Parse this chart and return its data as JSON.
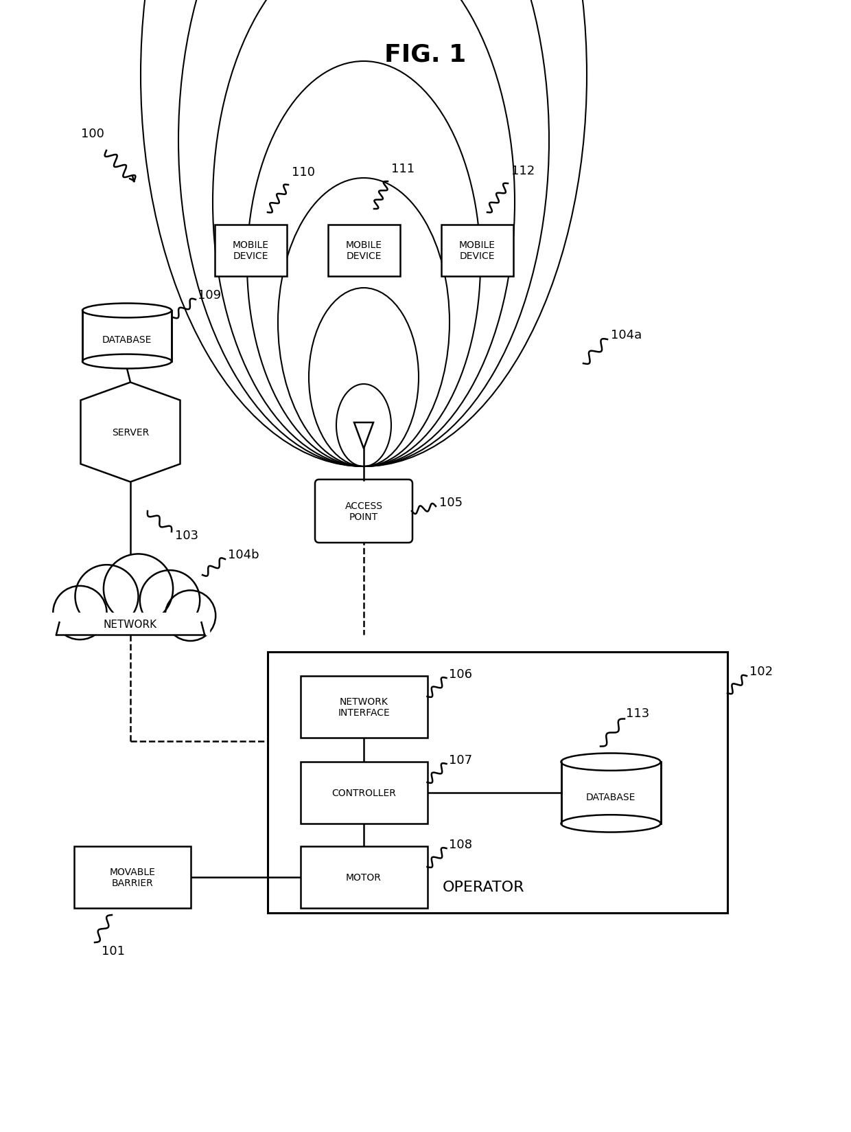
{
  "title": "FIG. 1",
  "bg_color": "#ffffff",
  "line_color": "#000000",
  "fig_width": 12.4,
  "fig_height": 16.49,
  "labels": {
    "fig_title": "FIG. 1",
    "ref_100": "100",
    "ref_101": "101",
    "ref_102": "102",
    "ref_103": "103",
    "ref_104a": "104a",
    "ref_104b": "104b",
    "ref_105": "105",
    "ref_106": "106",
    "ref_107": "107",
    "ref_108": "108",
    "ref_109": "109",
    "ref_110": "110",
    "ref_111": "111",
    "ref_112": "112",
    "ref_113": "113",
    "mobile_device": "MOBILE\nDEVICE",
    "database_top": "DATABASE",
    "server": "SERVER",
    "network": "NETWORK",
    "access_point": "ACCESS\nPOINT",
    "network_interface": "NETWORK\nINTERFACE",
    "controller": "CONTROLLER",
    "motor": "MOTOR",
    "operator": "OPERATOR",
    "database_bot": "DATABASE",
    "movable_barrier": "MOVABLE\nBARRIER"
  }
}
